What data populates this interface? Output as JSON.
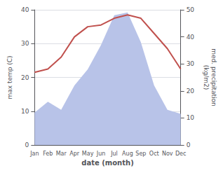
{
  "chart_data": {
    "type": "line",
    "xlabel": "date (month)",
    "ylabel": "max temp (C)",
    "y2label": "med. precipitation\n(kg/m2)",
    "categories": [
      "Jan",
      "Feb",
      "Mar",
      "Apr",
      "May",
      "Jun",
      "Jul",
      "Aug",
      "Sep",
      "Oct",
      "Nov",
      "Dec"
    ],
    "series": [
      {
        "type": "area",
        "axis": "y2",
        "color": "#b8c3e8",
        "values": [
          12.0,
          16.0,
          13.0,
          22.0,
          28.0,
          37.0,
          48.0,
          49.0,
          38.0,
          22.0,
          13.0,
          11.5
        ]
      },
      {
        "type": "line",
        "color": "#c0504d",
        "values": [
          21.5,
          22.5,
          26.0,
          32.0,
          35.0,
          35.5,
          37.5,
          38.5,
          37.5,
          33.0,
          28.5,
          22.5
        ]
      }
    ],
    "ylim": [
      0,
      40
    ],
    "yticks": [
      0,
      10,
      20,
      30,
      40
    ],
    "y2lim": [
      0,
      50
    ],
    "y2ticks": [
      0,
      10,
      20,
      30,
      40,
      50
    ],
    "grid": true
  }
}
